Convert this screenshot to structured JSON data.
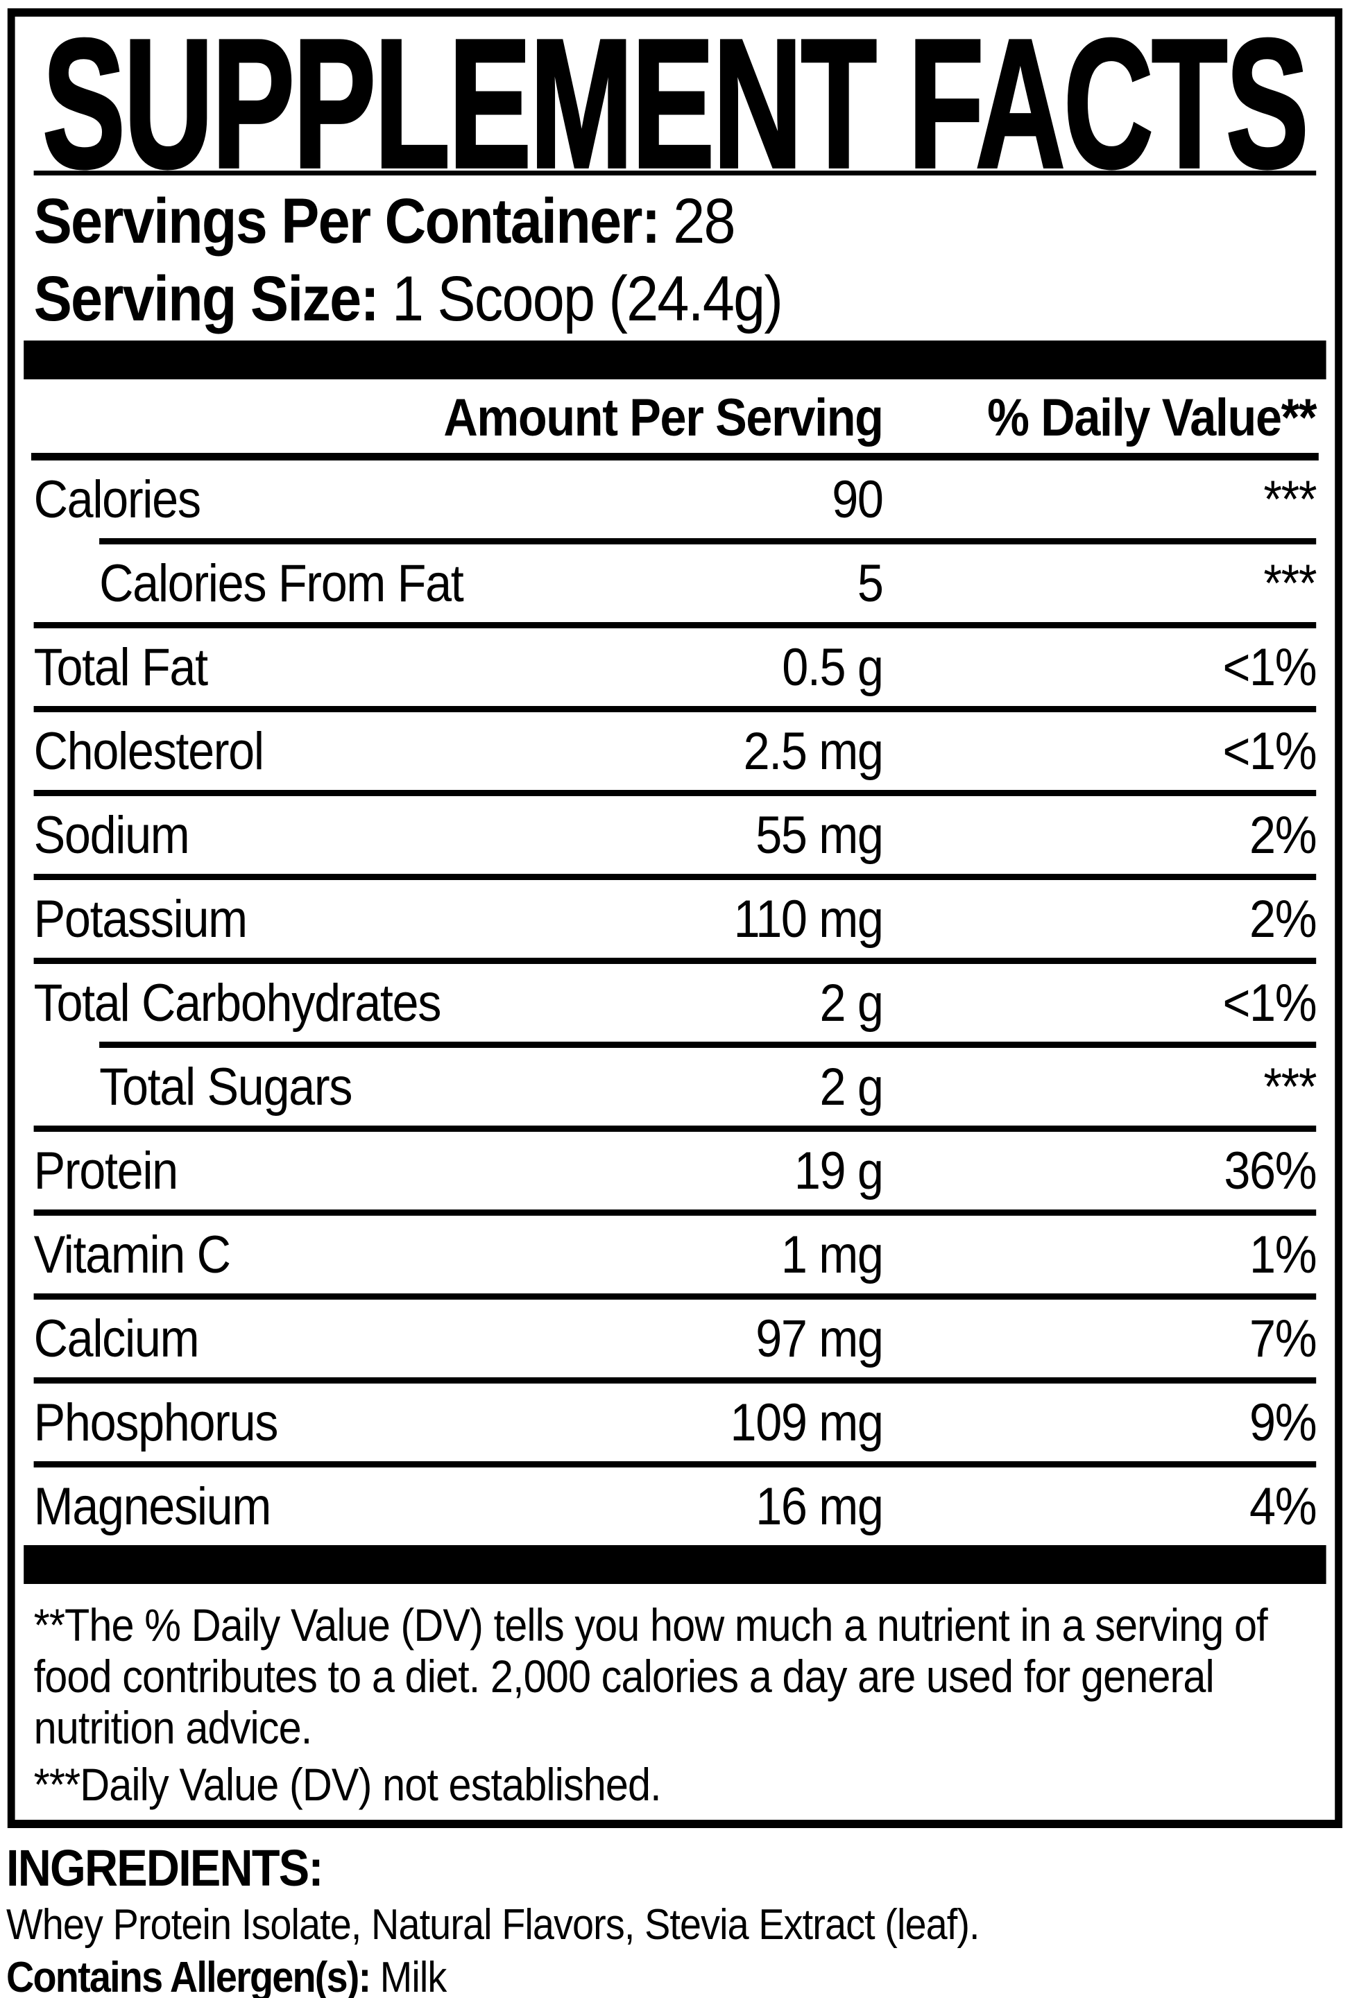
{
  "title": "SUPPLEMENT FACTS",
  "serving_info": [
    {
      "label": "Servings Per Container:",
      "value": "28"
    },
    {
      "label": "Serving Size:",
      "value": "1 Scoop (24.4g)"
    }
  ],
  "table": {
    "amount_header": "Amount Per Serving",
    "dv_header": "% Daily Value**",
    "rows": [
      {
        "name": "Calories",
        "amount": "90",
        "dv": "***",
        "indent": false
      },
      {
        "name": "Calories From Fat",
        "amount": "5",
        "dv": "***",
        "indent": true
      },
      {
        "name": "Total Fat",
        "amount": "0.5 g",
        "dv": "<1%",
        "indent": false
      },
      {
        "name": "Cholesterol",
        "amount": "2.5 mg",
        "dv": "<1%",
        "indent": false
      },
      {
        "name": "Sodium",
        "amount": "55 mg",
        "dv": "2%",
        "indent": false
      },
      {
        "name": "Potassium",
        "amount": "110 mg",
        "dv": "2%",
        "indent": false
      },
      {
        "name": "Total Carbohydrates",
        "amount": "2 g",
        "dv": "<1%",
        "indent": false
      },
      {
        "name": "Total Sugars",
        "amount": "2 g",
        "dv": "***",
        "indent": true
      },
      {
        "name": "Protein",
        "amount": "19 g",
        "dv": "36%",
        "indent": false
      },
      {
        "name": "Vitamin C",
        "amount": "1 mg",
        "dv": "1%",
        "indent": false
      },
      {
        "name": "Calcium",
        "amount": "97 mg",
        "dv": "7%",
        "indent": false
      },
      {
        "name": "Phosphorus",
        "amount": "109 mg",
        "dv": "9%",
        "indent": false
      },
      {
        "name": "Magnesium",
        "amount": "16 mg",
        "dv": "4%",
        "indent": false
      }
    ]
  },
  "footnotes": {
    "daily_value": "**The % Daily Value (DV) tells you how much a nutrient in a serving of food contributes to a diet. 2,000 calories a day are used for general nutrition advice.",
    "not_established": "***Daily Value (DV) not established."
  },
  "ingredients": {
    "heading": "INGREDIENTS:",
    "list": "Whey Protein Isolate, Natural Flavors, Stevia Extract (leaf).",
    "allergen_label": "Contains Allergen(s):",
    "allergen_value": "Milk"
  },
  "colors": {
    "ink": "#000000",
    "paper": "#ffffff"
  }
}
